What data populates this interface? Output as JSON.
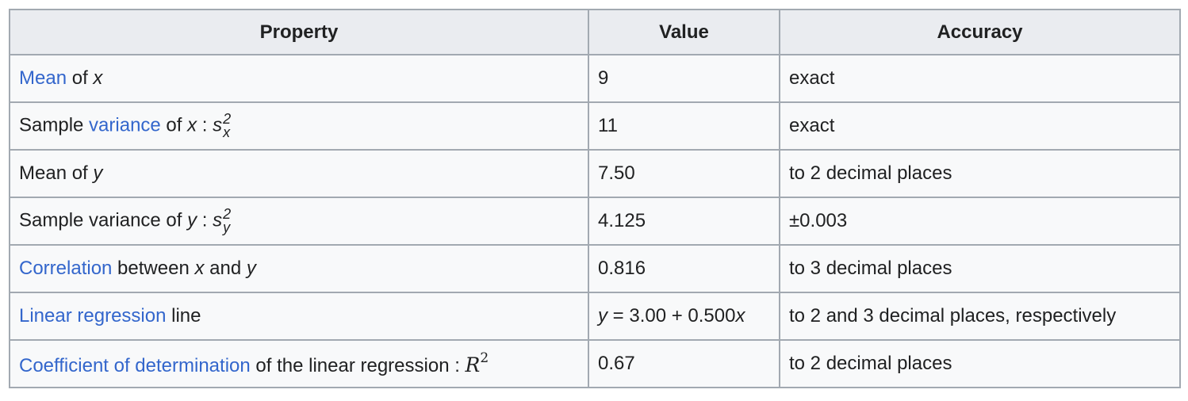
{
  "table": {
    "header": [
      "Property",
      "Value",
      "Accuracy"
    ],
    "rows": [
      [
        [
          {
            "text": "Mean",
            "style": "link"
          },
          {
            "text": " of ",
            "style": "plain"
          },
          {
            "text": "x",
            "style": "italic"
          }
        ],
        [
          {
            "text": "9",
            "style": "plain"
          }
        ],
        [
          {
            "text": "exact",
            "style": "plain"
          }
        ]
      ],
      [
        [
          {
            "text": "Sample ",
            "style": "plain"
          },
          {
            "text": "variance",
            "style": "link"
          },
          {
            "text": " of ",
            "style": "plain"
          },
          {
            "text": "x",
            "style": "italic"
          },
          {
            "text": " : ",
            "style": "plain"
          },
          {
            "text": "s",
            "style": "italic",
            "sub": "x",
            "sup": "2"
          }
        ],
        [
          {
            "text": "11",
            "style": "plain"
          }
        ],
        [
          {
            "text": "exact",
            "style": "plain"
          }
        ]
      ],
      [
        [
          {
            "text": "Mean of ",
            "style": "plain"
          },
          {
            "text": "y",
            "style": "italic"
          }
        ],
        [
          {
            "text": "7.50",
            "style": "plain"
          }
        ],
        [
          {
            "text": "to 2 decimal places",
            "style": "plain"
          }
        ]
      ],
      [
        [
          {
            "text": "Sample variance of ",
            "style": "plain"
          },
          {
            "text": "y",
            "style": "italic"
          },
          {
            "text": " : ",
            "style": "plain"
          },
          {
            "text": "s",
            "style": "italic",
            "sub": "y",
            "sup": "2"
          }
        ],
        [
          {
            "text": "4.125",
            "style": "plain"
          }
        ],
        [
          {
            "text": "±0.003",
            "style": "plain"
          }
        ]
      ],
      [
        [
          {
            "text": "Correlation",
            "style": "link"
          },
          {
            "text": " between ",
            "style": "plain"
          },
          {
            "text": "x",
            "style": "italic"
          },
          {
            "text": " and ",
            "style": "plain"
          },
          {
            "text": "y",
            "style": "italic"
          }
        ],
        [
          {
            "text": "0.816",
            "style": "plain"
          }
        ],
        [
          {
            "text": "to 3 decimal places",
            "style": "plain"
          }
        ]
      ],
      [
        [
          {
            "text": "Linear regression",
            "style": "link"
          },
          {
            "text": " line",
            "style": "plain"
          }
        ],
        [
          {
            "text": "y",
            "style": "italic"
          },
          {
            "text": " = 3.00 + 0.500",
            "style": "plain"
          },
          {
            "text": "x",
            "style": "italic"
          }
        ],
        [
          {
            "text": "to 2 and 3 decimal places, respectively",
            "style": "plain"
          }
        ]
      ],
      [
        [
          {
            "text": "Coefficient of determination",
            "style": "link"
          },
          {
            "text": " of the linear regression  : ",
            "style": "plain"
          },
          {
            "text": "R",
            "style": "math",
            "sup": "2"
          }
        ],
        [
          {
            "text": "0.67",
            "style": "plain"
          }
        ],
        [
          {
            "text": "to 2 decimal places",
            "style": "plain"
          }
        ]
      ]
    ]
  }
}
